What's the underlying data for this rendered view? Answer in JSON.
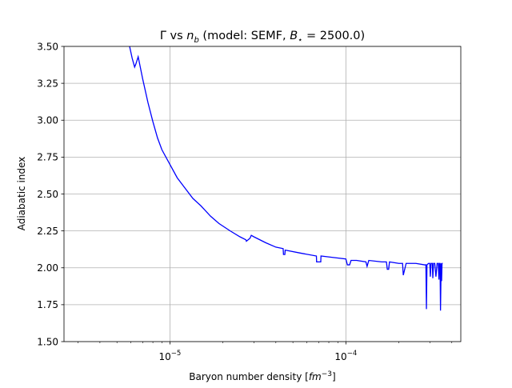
{
  "chart_data": {
    "type": "line",
    "title": {
      "gamma": "Γ",
      "vs": " vs ",
      "n": "n",
      "n_sub": "b",
      "mid": " (model: SEMF, ",
      "B": "B",
      "B_sub": "⋆",
      "end": " = 2500.0)"
    },
    "xlabel": {
      "text": "Baryon number density [",
      "unit": "fm",
      "unit_sup": "−3",
      "close": "]"
    },
    "ylabel": "Adiabatic index",
    "x_scale": "log",
    "xlim": [
      2.5e-06,
      0.00045
    ],
    "ylim": [
      1.5,
      3.5
    ],
    "x_ticks": [
      {
        "value": 1e-05,
        "base": "10",
        "exp": "−5"
      },
      {
        "value": 0.0001,
        "base": "10",
        "exp": "−4"
      }
    ],
    "y_ticks": [
      {
        "value": 1.5,
        "label": "1.50"
      },
      {
        "value": 1.75,
        "label": "1.75"
      },
      {
        "value": 2.0,
        "label": "2.00"
      },
      {
        "value": 2.25,
        "label": "2.25"
      },
      {
        "value": 2.5,
        "label": "2.50"
      },
      {
        "value": 2.75,
        "label": "2.75"
      },
      {
        "value": 3.0,
        "label": "3.00"
      },
      {
        "value": 3.25,
        "label": "3.25"
      },
      {
        "value": 3.5,
        "label": "3.50"
      }
    ],
    "grid": true,
    "legend": "none",
    "series": [
      {
        "color": "#0000ff",
        "x": [
          5.9e-06,
          6.1e-06,
          6.3e-06,
          6.4e-06,
          6.6e-06,
          7e-06,
          7.5e-06,
          8e-06,
          8.5e-06,
          9e-06,
          1e-05,
          1.1e-05,
          1.2e-05,
          1.35e-05,
          1.5e-05,
          1.7e-05,
          1.9e-05,
          2.2e-05,
          2.5e-05,
          2.7e-05,
          2.72e-05,
          2.85e-05,
          2.9e-05,
          3e-05,
          3.5e-05,
          4e-05,
          4.4e-05,
          4.42e-05,
          4.5e-05,
          4.52e-05,
          5.5e-05,
          6.8e-05,
          6.82e-05,
          7.2e-05,
          7.22e-05,
          8.5e-05,
          0.0001,
          0.000102,
          0.000105,
          0.000107,
          0.000115,
          0.00013,
          0.000132,
          0.000135,
          0.00016,
          0.00017,
          0.000172,
          0.000175,
          0.000177,
          0.0002,
          0.00021,
          0.000212,
          0.00022,
          0.00025,
          0.00028,
          0.000285,
          0.000287,
          0.000289,
          0.000295,
          0.0003,
          0.000302,
          0.000305,
          0.00031,
          0.000312,
          0.000315,
          0.00032,
          0.000325,
          0.00033,
          0.000335,
          0.000338,
          0.00034,
          0.000343,
          0.000345,
          0.000348,
          0.00035,
          0.000352,
          0.000355
        ],
        "y": [
          3.5,
          3.42,
          3.36,
          3.38,
          3.43,
          3.28,
          3.12,
          2.99,
          2.88,
          2.8,
          2.7,
          2.61,
          2.55,
          2.47,
          2.42,
          2.35,
          2.3,
          2.25,
          2.21,
          2.19,
          2.18,
          2.2,
          2.22,
          2.21,
          2.17,
          2.14,
          2.13,
          2.09,
          2.09,
          2.12,
          2.1,
          2.08,
          2.04,
          2.04,
          2.08,
          2.07,
          2.06,
          2.02,
          2.02,
          2.05,
          2.05,
          2.04,
          2.01,
          2.05,
          2.04,
          2.04,
          1.99,
          1.99,
          2.04,
          2.03,
          2.03,
          1.95,
          2.03,
          2.03,
          2.02,
          2.02,
          1.72,
          2.02,
          2.03,
          2.03,
          1.94,
          2.03,
          2.03,
          1.93,
          2.03,
          2.03,
          1.94,
          2.03,
          2.03,
          1.92,
          2.03,
          2.03,
          1.71,
          2.03,
          1.91,
          2.03,
          2.03
        ]
      }
    ]
  }
}
